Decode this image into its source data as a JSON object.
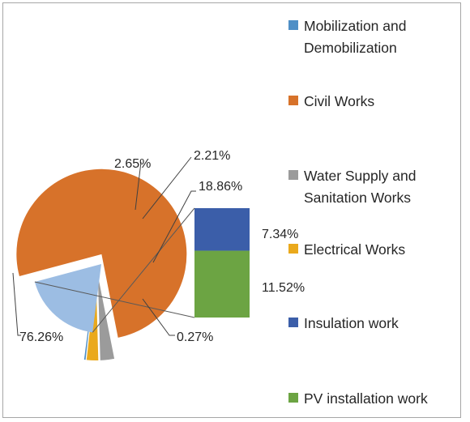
{
  "chart_data": {
    "type": "pie",
    "subtype": "bar-of-pie",
    "title": "",
    "legend_position": "right",
    "slices": [
      {
        "label": "Mobilization and\nDemobilization",
        "value": 0.27,
        "value_label": "0.27%",
        "color": "#4f8fc6"
      },
      {
        "label": "Civil Works",
        "value": 76.26,
        "value_label": "76.26%",
        "color": "#d7722a"
      },
      {
        "label": "Water Supply and\nSanitation Works",
        "value": 2.65,
        "value_label": "2.65%",
        "color": "#9b9b9b"
      },
      {
        "label": "Electrical Works",
        "value": 2.21,
        "value_label": "2.21%",
        "color": "#eaa91c"
      },
      {
        "label": "Insulation work",
        "value": 7.34,
        "value_label": "7.34%",
        "color": "#3b5ea9"
      },
      {
        "label": "PV installation work",
        "value": 11.52,
        "value_label": "11.52%",
        "color": "#6ca443"
      }
    ],
    "combined_slice": {
      "value": 18.86,
      "value_label": "18.86%",
      "color": "#9cbde3",
      "components": [
        4,
        5
      ]
    }
  }
}
